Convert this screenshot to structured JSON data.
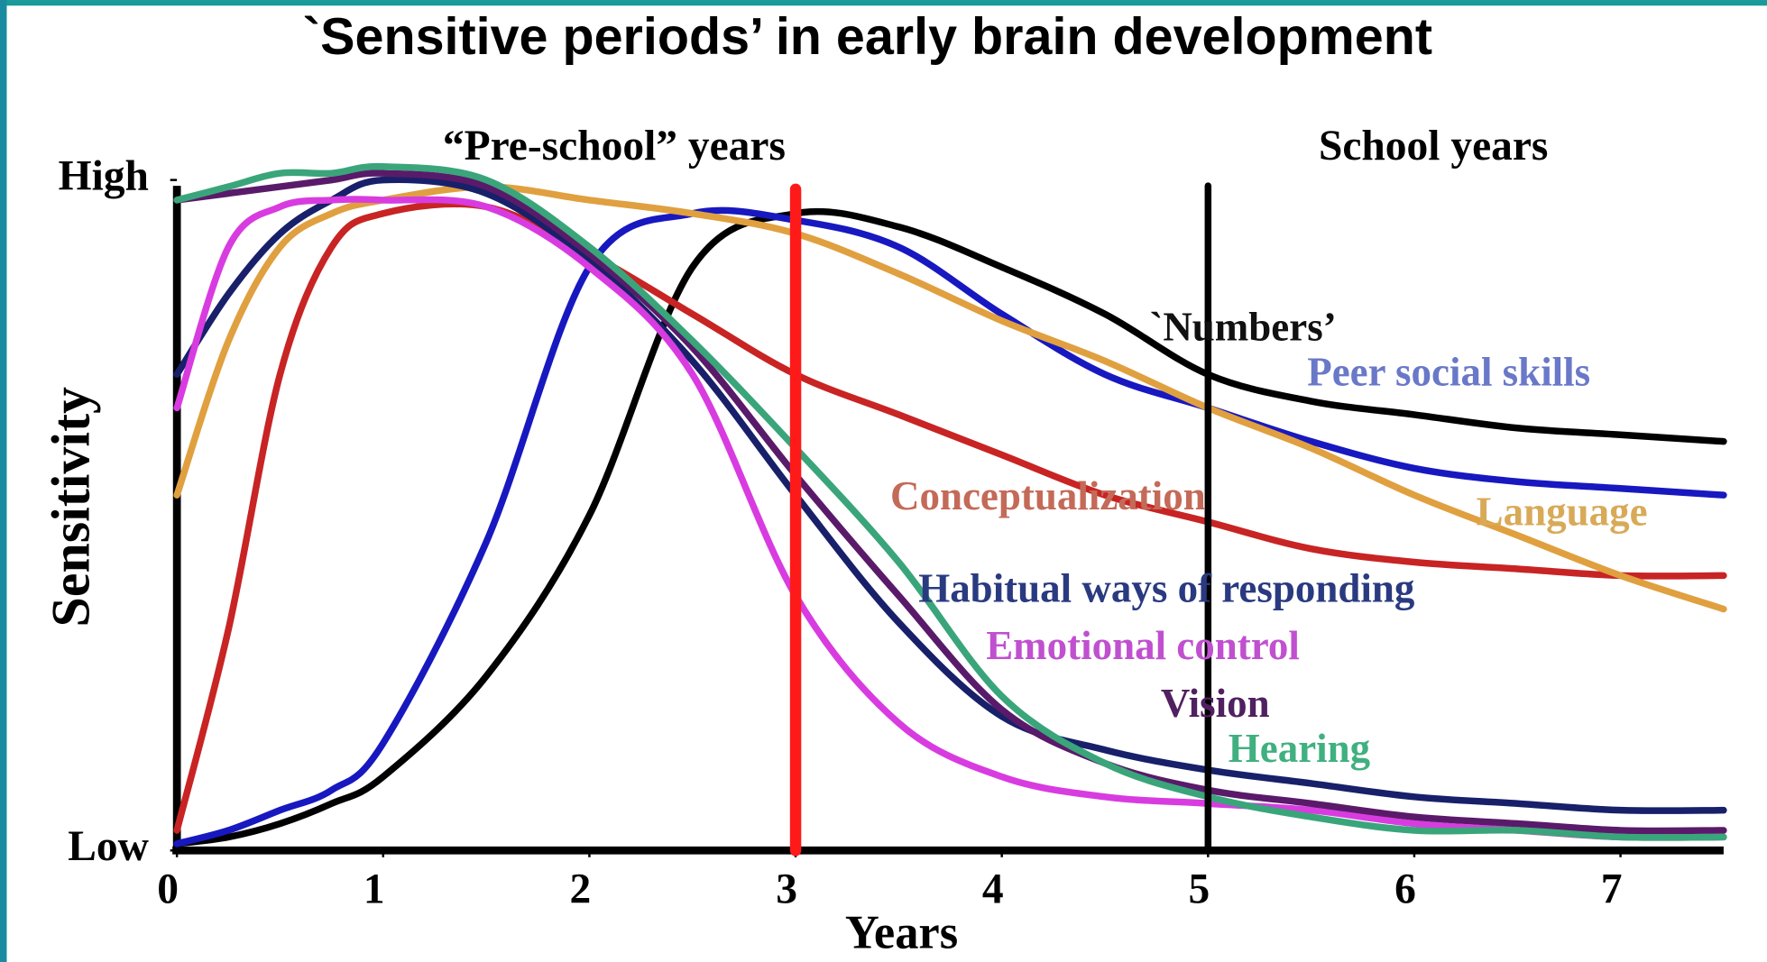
{
  "chart_data": {
    "type": "line",
    "title": "`Sensitive periods’ in early brain development",
    "annotations": [
      "“Pre-school” years",
      "School years"
    ],
    "x_label": "Years",
    "y_label": "Sensitivity",
    "xlim": [
      0,
      7.5
    ],
    "ylim": [
      0,
      1.05
    ],
    "xticks": [
      0,
      1,
      2,
      3,
      4,
      5,
      6,
      7
    ],
    "yticks": [
      {
        "value": 0,
        "label": "Low"
      },
      {
        "value": 1,
        "label": "High"
      }
    ],
    "vlines": [
      {
        "x": 3,
        "color": "#ff1a1a"
      },
      {
        "x": 5,
        "color": "#000000"
      }
    ],
    "x": [
      0,
      0.25,
      0.5,
      0.75,
      1,
      1.5,
      2,
      2.5,
      3,
      3.5,
      4,
      4.5,
      5,
      5.5,
      6,
      6.5,
      7,
      7.5
    ],
    "series": [
      {
        "name": "`Numbers’",
        "color": "#000000",
        "label_color": "#111111",
        "values": [
          0.01,
          0.02,
          0.04,
          0.07,
          0.11,
          0.26,
          0.5,
          0.87,
          0.95,
          0.93,
          0.87,
          0.8,
          0.71,
          0.67,
          0.65,
          0.63,
          0.62,
          0.61
        ]
      },
      {
        "name": "Peer social skills",
        "color": "#1818c0",
        "label_color": "#6a78c8",
        "values": [
          0.01,
          0.03,
          0.06,
          0.09,
          0.16,
          0.46,
          0.87,
          0.95,
          0.94,
          0.9,
          0.8,
          0.71,
          0.66,
          0.61,
          0.57,
          0.55,
          0.54,
          0.53
        ]
      },
      {
        "name": "Conceptualization",
        "color": "#c82424",
        "label_color": "#c46a58",
        "values": [
          0.03,
          0.33,
          0.71,
          0.9,
          0.95,
          0.96,
          0.89,
          0.8,
          0.71,
          0.65,
          0.59,
          0.53,
          0.49,
          0.45,
          0.43,
          0.42,
          0.41,
          0.41
        ]
      },
      {
        "name": "Language",
        "color": "#e0a040",
        "label_color": "#d8aa58",
        "values": [
          0.53,
          0.76,
          0.9,
          0.95,
          0.97,
          0.99,
          0.97,
          0.95,
          0.92,
          0.86,
          0.79,
          0.73,
          0.66,
          0.6,
          0.53,
          0.47,
          0.41,
          0.36
        ]
      },
      {
        "name": "Habitual ways of responding",
        "color": "#18206a",
        "label_color": "#2a3a80",
        "values": [
          0.71,
          0.83,
          0.92,
          0.97,
          1.0,
          0.98,
          0.88,
          0.73,
          0.53,
          0.34,
          0.2,
          0.15,
          0.12,
          0.1,
          0.08,
          0.07,
          0.06,
          0.06
        ]
      },
      {
        "name": "Emotional control",
        "color": "#d83ce0",
        "label_color": "#c050d0",
        "values": [
          0.66,
          0.9,
          0.96,
          0.97,
          0.97,
          0.96,
          0.87,
          0.71,
          0.38,
          0.19,
          0.11,
          0.08,
          0.07,
          0.06,
          0.04,
          0.03,
          0.02,
          0.02
        ]
      },
      {
        "name": "Vision",
        "color": "#5a1a6a",
        "label_color": "#502060",
        "values": [
          0.97,
          0.98,
          0.99,
          1.0,
          1.01,
          0.99,
          0.89,
          0.75,
          0.56,
          0.38,
          0.21,
          0.13,
          0.09,
          0.07,
          0.05,
          0.04,
          0.03,
          0.03
        ]
      },
      {
        "name": "Hearing",
        "color": "#3aa57a",
        "label_color": "#40b080",
        "values": [
          0.97,
          0.99,
          1.01,
          1.01,
          1.02,
          1.0,
          0.9,
          0.76,
          0.6,
          0.43,
          0.23,
          0.13,
          0.08,
          0.05,
          0.03,
          0.03,
          0.02,
          0.02
        ]
      }
    ]
  }
}
